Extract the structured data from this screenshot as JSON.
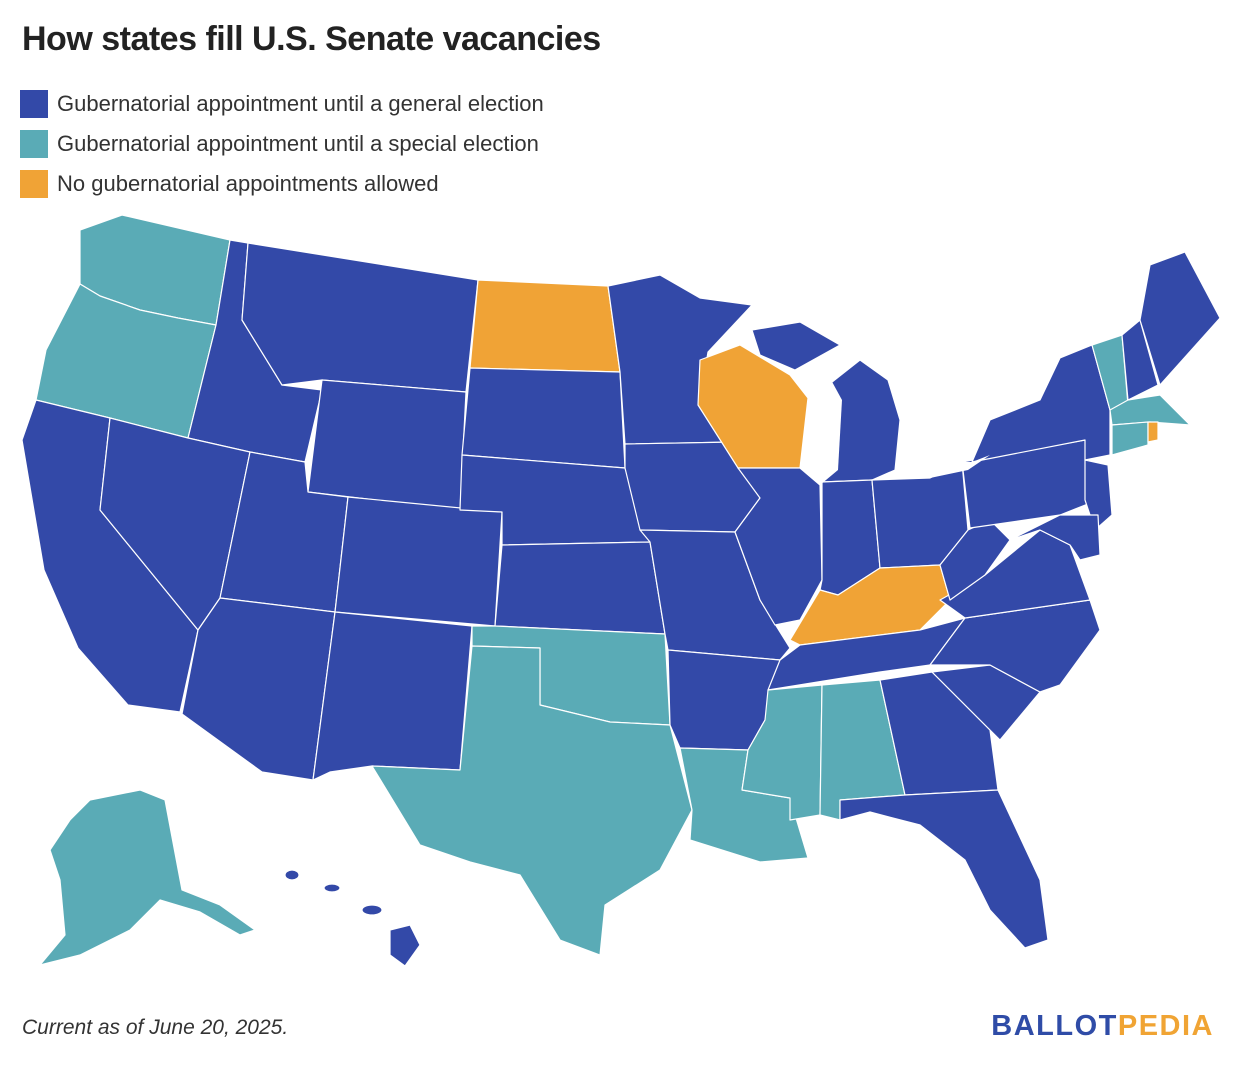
{
  "title": "How states fill U.S. Senate vacancies",
  "legend": [
    {
      "label": "Gubernatorial appointment until a general election",
      "color": "#3349a8"
    },
    {
      "label": "Gubernatorial appointment until a special election",
      "color": "#5aabb6"
    },
    {
      "label": "No gubernatorial appointments allowed",
      "color": "#f0a336"
    }
  ],
  "footer": {
    "note": "Current as of June 20, 2025."
  },
  "brand": {
    "part1": "BALLOT",
    "part2": "PEDIA"
  },
  "colors": {
    "general": "#3349a8",
    "special": "#5aabb6",
    "none": "#f0a336",
    "lake": "#ffffff"
  }
}
